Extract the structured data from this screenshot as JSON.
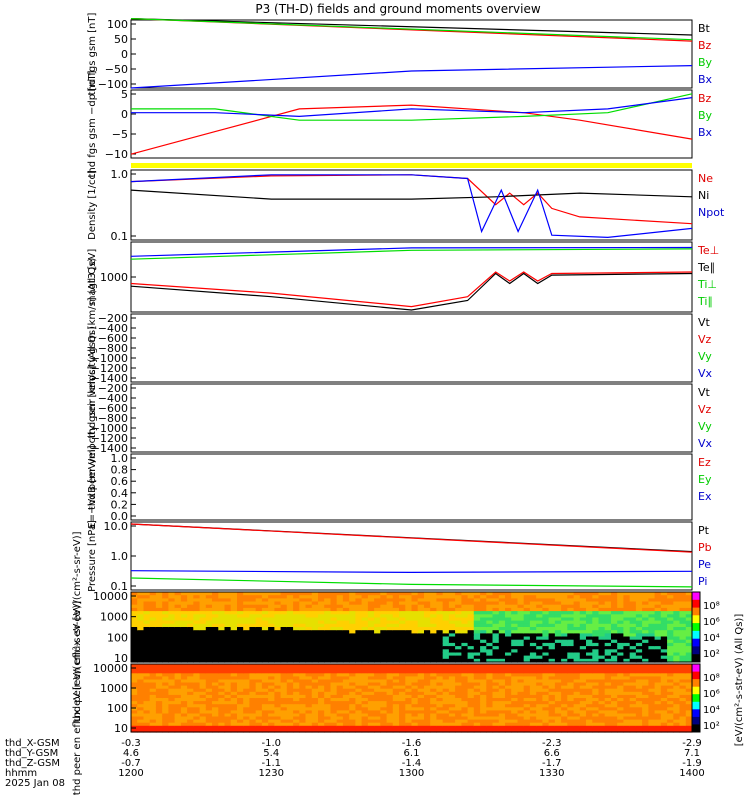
{
  "title": "P3 (TH-D) fields and ground moments overview",
  "footer": {
    "rows": [
      {
        "label": "thd_X-GSM",
        "values": [
          "-0.3",
          "-1.0",
          "-1.6",
          "-2.3",
          "-2.9"
        ]
      },
      {
        "label": "thd_Y-GSM",
        "values": [
          "4.6",
          "5.4",
          "6.1",
          "6.6",
          "7.1"
        ]
      },
      {
        "label": "thd_Z-GSM",
        "values": [
          "-0.7",
          "-1.1",
          "-1.4",
          "-1.7",
          "-1.9"
        ]
      },
      {
        "label": "hhmm",
        "values": [
          "1200",
          "1230",
          "1300",
          "1330",
          "1400"
        ]
      }
    ],
    "date": "2025 Jan 08"
  },
  "colorbar": {
    "ticks": [
      "10⁸",
      "10⁶",
      "10⁴",
      "10²"
    ],
    "label": "[eV/(cm²-s-str-eV) (All Qs)]"
  },
  "chart_data": [
    {
      "type": "line",
      "ylabel": "thd fgs gsm [nT]",
      "ylim": [
        -100,
        100
      ],
      "yticks": [
        "100",
        "50",
        "0",
        "−50",
        "−100"
      ],
      "series": [
        {
          "name": "Bt",
          "color": "#000000",
          "x": [
            1200,
            1400
          ],
          "values": [
            104,
            56
          ]
        },
        {
          "name": "Bz",
          "color": "#ff0000",
          "x": [
            1200,
            1400
          ],
          "values": [
            104,
            38
          ]
        },
        {
          "name": "By",
          "color": "#00dd00",
          "x": [
            1200,
            1400
          ],
          "values": [
            104,
            42
          ]
        },
        {
          "name": "Bx",
          "color": "#0000ff",
          "x": [
            1200,
            1300,
            1400
          ],
          "values": [
            -100,
            -50,
            -34
          ]
        }
      ]
    },
    {
      "type": "line",
      "ylabel": "thd fgs gsm −dp [nT]",
      "ylim": [
        -13,
        5
      ],
      "yticks": [
        "5",
        "0",
        "−5",
        "−10"
      ],
      "series": [
        {
          "name": "Bz",
          "color": "#ff0000",
          "x": [
            1200,
            1230,
            1260,
            1300,
            1340,
            1360,
            1400
          ],
          "values": [
            -12,
            -6,
            0,
            1,
            -1,
            -3,
            -8
          ]
        },
        {
          "name": "By",
          "color": "#00dd00",
          "x": [
            1200,
            1230,
            1260,
            1300,
            1340,
            1370,
            1400
          ],
          "values": [
            0,
            0,
            -3,
            -3,
            -2,
            -1,
            4
          ]
        },
        {
          "name": "Bx",
          "color": "#0000ff",
          "x": [
            1200,
            1230,
            1260,
            1300,
            1340,
            1370,
            1400
          ],
          "values": [
            -1,
            -1,
            -2,
            0,
            -1,
            0,
            3
          ]
        }
      ]
    },
    {
      "type": "line",
      "ylabel": "Density [1/cc]",
      "yscale": "log",
      "ylim": [
        0.03,
        2
      ],
      "yticks": [
        "1.0",
        "0.1"
      ],
      "series": [
        {
          "name": "Ne",
          "color": "#ff0000",
          "x": [
            1200,
            1250,
            1300,
            1320,
            1330,
            1335,
            1340,
            1345,
            1350,
            1360,
            1400
          ],
          "values": [
            1.0,
            1.4,
            1.5,
            1.2,
            0.25,
            0.5,
            0.25,
            0.5,
            0.2,
            0.12,
            0.08
          ]
        },
        {
          "name": "Ni",
          "color": "#000000",
          "x": [
            1200,
            1250,
            1300,
            1330,
            1360,
            1400
          ],
          "values": [
            0.6,
            0.35,
            0.35,
            0.4,
            0.5,
            0.4
          ]
        },
        {
          "name": "Npot",
          "color": "#0000ff",
          "x": [
            1200,
            1250,
            1300,
            1320,
            1325,
            1332,
            1338,
            1345,
            1350,
            1370,
            1400
          ],
          "values": [
            1.0,
            1.5,
            1.5,
            1.2,
            0.05,
            0.6,
            0.05,
            0.6,
            0.04,
            0.035,
            0.06
          ]
        }
      ]
    },
    {
      "type": "line",
      "ylabel": "magt3 [eV]",
      "yscale": "log",
      "ylim": [
        200,
        6000
      ],
      "yticks": [
        "1000"
      ],
      "series": [
        {
          "name": "Te⊥",
          "color": "#ff0000",
          "x": [
            1200,
            1250,
            1300,
            1320,
            1330,
            1335,
            1340,
            1345,
            1350,
            1400
          ],
          "values": [
            800,
            500,
            260,
            420,
            1400,
            900,
            1400,
            900,
            1300,
            1400
          ]
        },
        {
          "name": "Te∥",
          "color": "#000000",
          "x": [
            1200,
            1250,
            1300,
            1320,
            1330,
            1335,
            1340,
            1345,
            1350,
            1400
          ],
          "values": [
            700,
            420,
            220,
            350,
            1300,
            800,
            1300,
            800,
            1200,
            1300
          ]
        },
        {
          "name": "Ti⊥",
          "color": "#00dd00",
          "x": [
            1200,
            1300,
            1400
          ],
          "values": [
            2600,
            4000,
            4300
          ]
        },
        {
          "name": "Ti∥",
          "color": "#0000ff",
          "x": [
            1200,
            1300,
            1400
          ],
          "values": [
            3000,
            4500,
            4600
          ]
        }
      ]
    },
    {
      "type": "line",
      "ylabel": "thd peir velocity gsm [km/s] (All Qs)",
      "ylim": [
        -1400,
        0
      ],
      "yticks": [
        "−200",
        "−400",
        "−600",
        "−800",
        "−1000",
        "−1200",
        "−1400"
      ],
      "legend": [
        "Vt",
        "Vz",
        "Vy",
        "Vx"
      ],
      "series": []
    },
    {
      "type": "line",
      "ylabel": "thd peer velocity gsm [km/s] (All Qs)",
      "ylim": [
        -1400,
        0
      ],
      "yticks": [
        "−200",
        "−400",
        "−600",
        "−800",
        "−1000",
        "−1200",
        "−1400"
      ],
      "legend": [
        "Vt",
        "Vz",
        "Vy",
        "Vx"
      ],
      "series": []
    },
    {
      "type": "line",
      "ylabel": "E=−VxB [mV/m]",
      "ylim": [
        0,
        1
      ],
      "yticks": [
        "1.0",
        "0.8",
        "0.6",
        "0.4",
        "0.2",
        "0.0"
      ],
      "legend": [
        "Ez",
        "Ey",
        "Ex"
      ],
      "series": []
    },
    {
      "type": "line",
      "ylabel": "Pressure [nPa]",
      "yscale": "log",
      "ylim": [
        0.06,
        30
      ],
      "yticks": [
        "10.0",
        "1.0",
        "0.1"
      ],
      "series": [
        {
          "name": "Pt",
          "color": "#000000",
          "x": [
            1200,
            1400
          ],
          "values": [
            25,
            2
          ]
        },
        {
          "name": "Pb",
          "color": "#ff0000",
          "x": [
            1200,
            1400
          ],
          "values": [
            25,
            1.9
          ]
        },
        {
          "name": "Pe",
          "color": "#0000ff",
          "x": [
            1200,
            1300,
            1400
          ],
          "values": [
            0.35,
            0.3,
            0.33
          ]
        },
        {
          "name": "Pi",
          "color": "#00dd00",
          "x": [
            1200,
            1300,
            1400
          ],
          "values": [
            0.18,
            0.1,
            0.08
          ]
        }
      ]
    },
    {
      "type": "heatmap",
      "ylabel": "thd peir en eflux eV [eV/(cm²-s-sr-eV)]",
      "yscale": "log",
      "ylim": [
        5,
        25000
      ],
      "yticks": [
        "10000",
        "1000",
        "100",
        "10"
      ]
    },
    {
      "type": "heatmap",
      "ylabel": "thd peer en eflux eV [eV/(cm²-s-sr-eV)]",
      "yscale": "log",
      "ylim": [
        5,
        25000
      ],
      "yticks": [
        "10000",
        "1000",
        "100",
        "10"
      ]
    }
  ]
}
